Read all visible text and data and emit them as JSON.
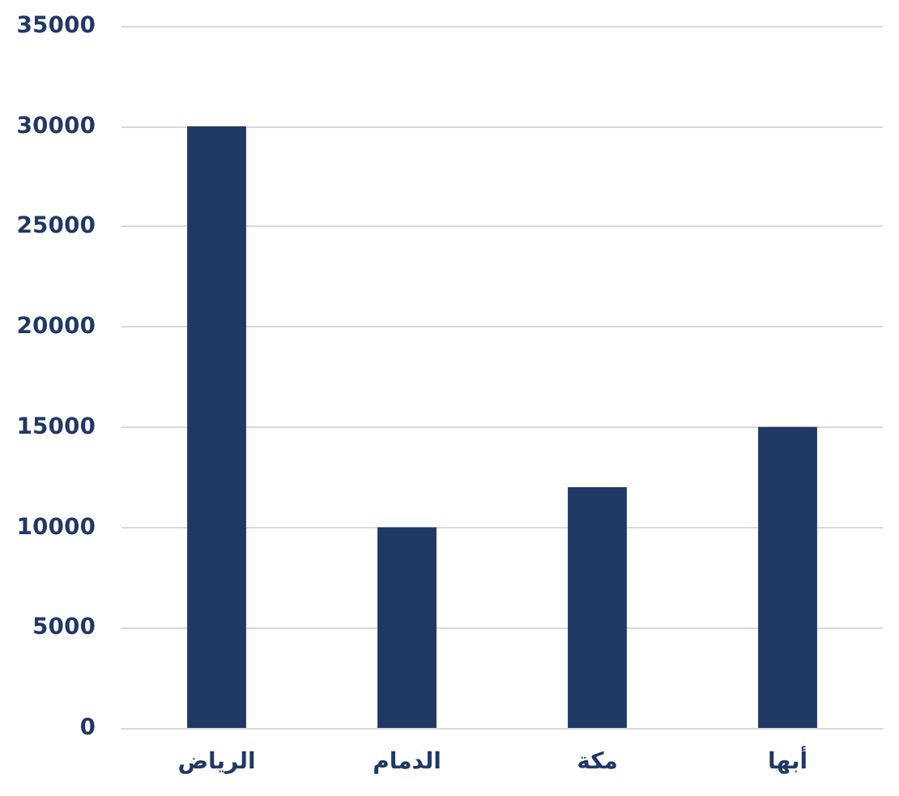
{
  "chart_data": {
    "type": "bar",
    "categories": [
      "الرياض",
      "الدمام",
      "مكة",
      "أبها"
    ],
    "values": [
      30000,
      10000,
      12000,
      15000
    ],
    "color": "#203864",
    "ylim": [
      0,
      35000
    ],
    "yticks": [
      0,
      5000,
      10000,
      15000,
      20000,
      25000,
      30000,
      35000
    ],
    "grid": "y"
  }
}
